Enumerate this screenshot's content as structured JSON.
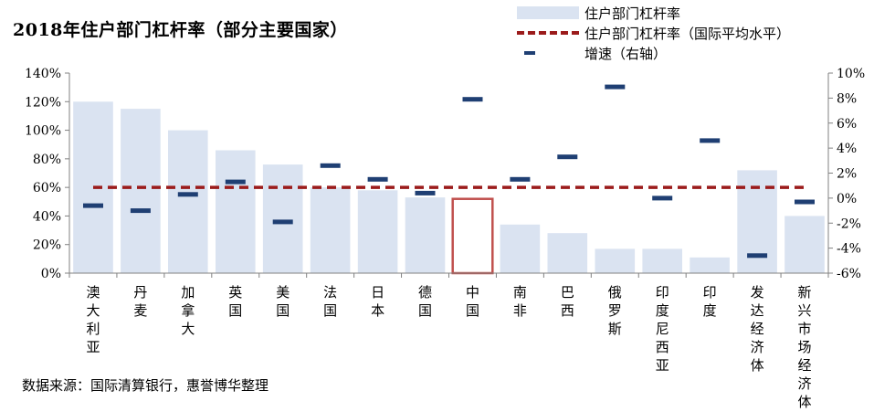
{
  "title": "2018年住户部门杠杆率（部分主要国家）",
  "source": "数据来源：国际清算银行，惠誉博华整理",
  "legend": [
    {
      "label": "住户部门杠杆率",
      "kind": "bar"
    },
    {
      "label": "住户部门杠杆率（国际平均水平）",
      "kind": "dashed-line"
    },
    {
      "label": "增速（右轴）",
      "kind": "marker"
    }
  ],
  "colors": {
    "bar": "#dae3f1",
    "avg_line": "#9b1b1b",
    "marker": "#1f3f73",
    "highlight": "#c0504d",
    "axis": "#808080"
  },
  "chart_data": {
    "type": "bar",
    "title": "2018年住户部门杠杆率（部分主要国家）",
    "categories": [
      "澳大利亚",
      "丹麦",
      "加拿大",
      "英国",
      "美国",
      "法国",
      "日本",
      "德国",
      "中国",
      "南非",
      "巴西",
      "俄罗斯",
      "印度尼西亚",
      "印度",
      "发达经济体",
      "新兴市场经济体"
    ],
    "series": [
      {
        "name": "住户部门杠杆率",
        "type": "bar",
        "axis": "left",
        "values": [
          120,
          115,
          100,
          86,
          76,
          60,
          58,
          53,
          52,
          34,
          28,
          17,
          17,
          11,
          72,
          40
        ]
      },
      {
        "name": "住户部门杠杆率（国际平均水平）",
        "type": "line",
        "axis": "left",
        "values": [
          60,
          60,
          60,
          60,
          60,
          60,
          60,
          60,
          60,
          60,
          60,
          60,
          60,
          60,
          60,
          60
        ]
      },
      {
        "name": "增速（右轴）",
        "type": "marker",
        "axis": "right",
        "values": [
          -0.6,
          -1.0,
          0.3,
          1.3,
          -1.9,
          2.6,
          1.5,
          0.4,
          7.9,
          1.5,
          3.3,
          8.9,
          0.0,
          4.6,
          -4.6,
          -0.3
        ]
      }
    ],
    "highlight_category": "中国",
    "y_left": {
      "ticks": [
        "0%",
        "20%",
        "40%",
        "60%",
        "80%",
        "100%",
        "120%",
        "140%"
      ],
      "ylim": [
        0,
        140
      ]
    },
    "y_right": {
      "ticks": [
        "-6%",
        "-4%",
        "-2%",
        "0%",
        "2%",
        "4%",
        "6%",
        "8%",
        "10%"
      ],
      "ylim": [
        -6,
        10
      ]
    }
  }
}
